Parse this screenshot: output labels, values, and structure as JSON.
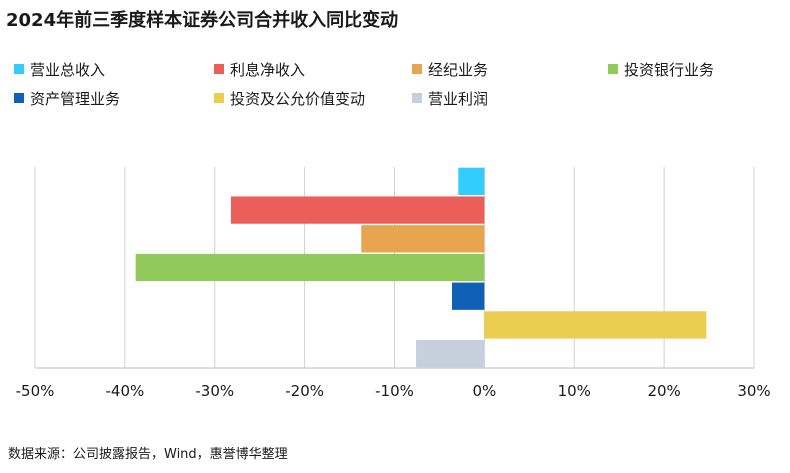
{
  "chart_data": {
    "type": "bar",
    "orientation": "horizontal",
    "title": "2024年前三季度样本证券公司合并收入同比变动",
    "categories": [
      "营业总收入",
      "利息净收入",
      "经纪业务",
      "投资银行业务",
      "资产管理业务",
      "投资及公允价值变动",
      "营业利润"
    ],
    "values": [
      -2.9,
      -28.2,
      -13.7,
      -38.8,
      -3.6,
      24.7,
      -7.6
    ],
    "colors": [
      "#33CCFF",
      "#EB5E5A",
      "#E8A550",
      "#91C95A",
      "#0F60B6",
      "#EBCD50",
      "#C5CFDD"
    ],
    "xlim": [
      -50,
      30
    ],
    "xticks": [
      -50,
      -40,
      -30,
      -20,
      -10,
      0,
      10,
      20,
      30
    ],
    "xtick_labels": [
      "-50%",
      "-40%",
      "-30%",
      "-20%",
      "-10%",
      "0%",
      "10%",
      "20%",
      "30%"
    ],
    "xlabel": "",
    "ylabel": "",
    "grid": "vertical",
    "legend_position": "top"
  },
  "source_note": "数据来源：公司披露报告，Wind，惠誉博华整理"
}
